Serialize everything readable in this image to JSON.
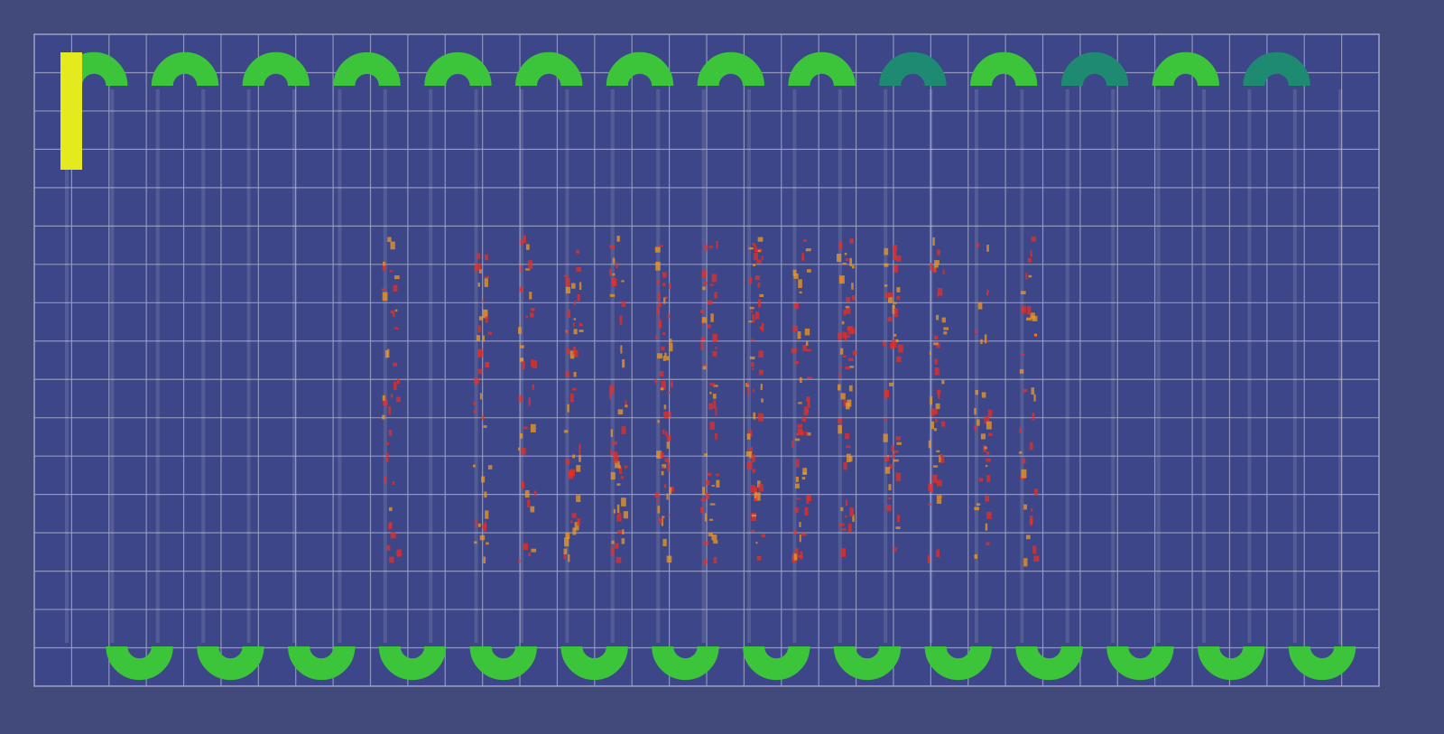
{
  "scene": {
    "background_color": "#424a7c",
    "panel_color": "#3d4688",
    "grid_line_color": "#9ea3c4",
    "grid_columns": 36,
    "grid_rows": 17,
    "tube": {
      "passes": 29,
      "colors": {
        "cool": "#1f8a72",
        "green": "#3cc43a",
        "lime": "#8fd82e",
        "yellow": "#e4ea1e",
        "orange": "#f09a1c",
        "red": "#ec2e22"
      },
      "heat_by_pass": [
        0.25,
        0.45,
        0.3,
        0.45,
        0.3,
        0.5,
        0.35,
        0.6,
        0.45,
        0.7,
        0.6,
        0.8,
        0.75,
        0.95,
        0.85,
        1.0,
        0.9,
        0.9,
        0.75,
        0.8,
        0.55,
        0.6,
        0.45,
        0.45,
        0.35,
        0.35,
        0.25,
        0.3,
        0.4
      ]
    }
  }
}
